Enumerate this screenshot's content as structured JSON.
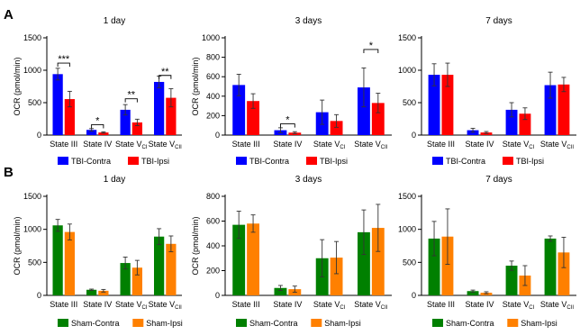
{
  "panels": [
    {
      "letter": "A"
    },
    {
      "letter": "B"
    }
  ],
  "chart_data": [
    {
      "type": "bar",
      "row": 0,
      "col": 0,
      "title": "1 day",
      "ylabel": "OCR (pmol/min)",
      "ylim": [
        0,
        1500
      ],
      "yticks": [
        0,
        500,
        1000,
        1500
      ],
      "categories": [
        {
          "base": "State III",
          "sub": ""
        },
        {
          "base": "State IV",
          "sub": ""
        },
        {
          "base": "State V",
          "sub": "CI"
        },
        {
          "base": "State V",
          "sub": "CII"
        }
      ],
      "series": [
        {
          "name": "TBI-Contra",
          "color": "#0000ff",
          "values": [
            940,
            80,
            390,
            820
          ],
          "errors": [
            90,
            20,
            80,
            90
          ]
        },
        {
          "name": "TBI-Ipsi",
          "color": "#ff0000",
          "values": [
            555,
            40,
            195,
            575
          ],
          "errors": [
            120,
            10,
            50,
            140
          ]
        }
      ],
      "significance": [
        {
          "category": 0,
          "label": "***",
          "value": 1110
        },
        {
          "category": 1,
          "label": "*",
          "value": 160
        },
        {
          "category": 2,
          "label": "**",
          "value": 560
        },
        {
          "category": 3,
          "label": "**",
          "value": 920
        }
      ]
    },
    {
      "type": "bar",
      "row": 0,
      "col": 1,
      "title": "3 days",
      "ylabel": "OCR (pmol/min)",
      "ylim": [
        0,
        1000
      ],
      "yticks": [
        0,
        200,
        400,
        600,
        800,
        1000
      ],
      "categories": [
        {
          "base": "State III",
          "sub": ""
        },
        {
          "base": "State IV",
          "sub": ""
        },
        {
          "base": "State V",
          "sub": "CI"
        },
        {
          "base": "State V",
          "sub": "CII"
        }
      ],
      "series": [
        {
          "name": "TBI-Contra",
          "color": "#0000ff",
          "values": [
            515,
            50,
            235,
            490
          ],
          "errors": [
            110,
            25,
            125,
            200
          ]
        },
        {
          "name": "TBI-Ipsi",
          "color": "#ff0000",
          "values": [
            350,
            25,
            145,
            330
          ],
          "errors": [
            75,
            10,
            65,
            100
          ]
        }
      ],
      "significance": [
        {
          "category": 1,
          "label": "*",
          "value": 115
        },
        {
          "category": 3,
          "label": "*",
          "value": 880
        }
      ]
    },
    {
      "type": "bar",
      "row": 0,
      "col": 2,
      "title": "7 days",
      "ylabel": "",
      "ylim": [
        0,
        1500
      ],
      "yticks": [
        0,
        500,
        1000,
        1500
      ],
      "categories": [
        {
          "base": "State III",
          "sub": ""
        },
        {
          "base": "State IV",
          "sub": ""
        },
        {
          "base": "State V",
          "sub": "CI"
        },
        {
          "base": "State V",
          "sub": "CII"
        }
      ],
      "series": [
        {
          "name": "TBI-Contra",
          "color": "#0000ff",
          "values": [
            930,
            75,
            390,
            770
          ],
          "errors": [
            170,
            30,
            110,
            200
          ]
        },
        {
          "name": "TBI-Ipsi",
          "color": "#ff0000",
          "values": [
            930,
            40,
            330,
            780
          ],
          "errors": [
            180,
            15,
            90,
            110
          ]
        }
      ],
      "significance": []
    },
    {
      "type": "bar",
      "row": 1,
      "col": 0,
      "title": "1 day",
      "ylabel": "OCR (pmol/min)",
      "ylim": [
        0,
        1500
      ],
      "yticks": [
        0,
        500,
        1000,
        1500
      ],
      "categories": [
        {
          "base": "State III",
          "sub": ""
        },
        {
          "base": "State IV",
          "sub": ""
        },
        {
          "base": "State V",
          "sub": "CI"
        },
        {
          "base": "State V",
          "sub": "CII"
        }
      ],
      "series": [
        {
          "name": "Sham-Contra",
          "color": "#008000",
          "values": [
            1060,
            85,
            490,
            890
          ],
          "errors": [
            90,
            10,
            90,
            120
          ]
        },
        {
          "name": "Sham-Ipsi",
          "color": "#ff8000",
          "values": [
            960,
            70,
            420,
            780
          ],
          "errors": [
            120,
            20,
            110,
            120
          ]
        }
      ],
      "significance": []
    },
    {
      "type": "bar",
      "row": 1,
      "col": 1,
      "title": "3 days",
      "ylabel": "OCR (pmol/min)",
      "ylim": [
        0,
        800
      ],
      "yticks": [
        0,
        200,
        400,
        600,
        800
      ],
      "categories": [
        {
          "base": "State III",
          "sub": ""
        },
        {
          "base": "State IV",
          "sub": ""
        },
        {
          "base": "State V",
          "sub": "CI"
        },
        {
          "base": "State V",
          "sub": "CII"
        }
      ],
      "series": [
        {
          "name": "Sham-Contra",
          "color": "#008000",
          "values": [
            570,
            60,
            300,
            510
          ],
          "errors": [
            110,
            20,
            150,
            180
          ]
        },
        {
          "name": "Sham-Ipsi",
          "color": "#ff8000",
          "values": [
            580,
            50,
            305,
            545
          ],
          "errors": [
            70,
            25,
            130,
            190
          ]
        }
      ],
      "significance": []
    },
    {
      "type": "bar",
      "row": 1,
      "col": 2,
      "title": "7 days",
      "ylabel": "",
      "ylim": [
        0,
        1500
      ],
      "yticks": [
        0,
        500,
        1000,
        1500
      ],
      "categories": [
        {
          "base": "State III",
          "sub": ""
        },
        {
          "base": "State IV",
          "sub": ""
        },
        {
          "base": "State V",
          "sub": "CI"
        },
        {
          "base": "State V",
          "sub": "CII"
        }
      ],
      "series": [
        {
          "name": "Sham-Contra",
          "color": "#008000",
          "values": [
            860,
            65,
            450,
            860
          ],
          "errors": [
            260,
            15,
            70,
            40
          ]
        },
        {
          "name": "Sham-Ipsi",
          "color": "#ff8000",
          "values": [
            890,
            40,
            300,
            650
          ],
          "errors": [
            420,
            15,
            150,
            230
          ]
        }
      ],
      "significance": []
    }
  ]
}
